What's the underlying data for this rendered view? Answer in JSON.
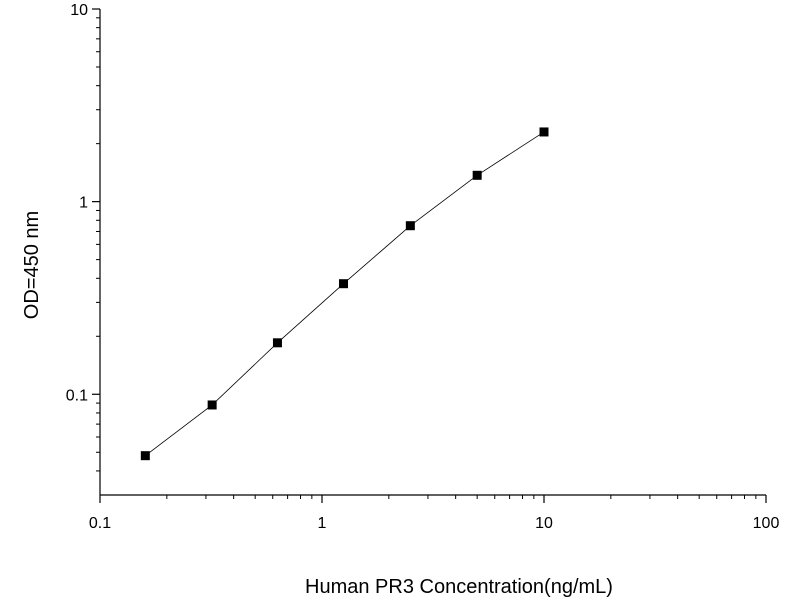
{
  "chart_data": {
    "type": "scatter",
    "title": "",
    "xlabel": "Human PR3 Concentration(ng/mL)",
    "ylabel": "OD=450 nm",
    "xscale": "log",
    "yscale": "log",
    "xlim": [
      0.1,
      100
    ],
    "ylim": [
      0.03,
      10
    ],
    "xticks": [
      0.1,
      1,
      10,
      100
    ],
    "xtick_labels": [
      "0.1",
      "1",
      "10",
      "100"
    ],
    "yticks": [
      0.1,
      1,
      10
    ],
    "ytick_labels": [
      "0.1",
      "1",
      "10"
    ],
    "grid": false,
    "legend": "none",
    "marker": "square",
    "line_connected": true,
    "series": [
      {
        "x": [
          0.16,
          0.32,
          0.63,
          1.25,
          2.5,
          5,
          10
        ],
        "y": [
          0.048,
          0.088,
          0.185,
          0.375,
          0.75,
          1.37,
          2.3
        ]
      }
    ]
  }
}
